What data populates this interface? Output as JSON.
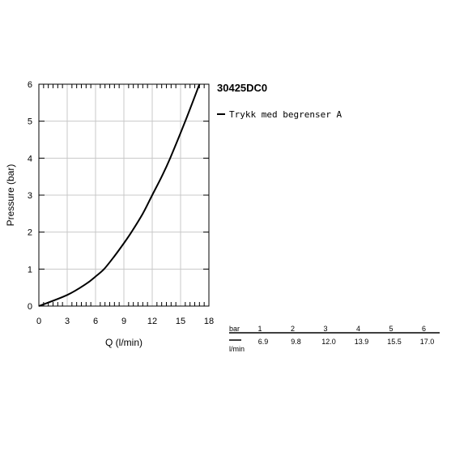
{
  "chart_data": {
    "type": "line",
    "title": "30425DC0",
    "xlabel": "Q (l/min)",
    "ylabel": "Pressure (bar)",
    "xlim": [
      0,
      18
    ],
    "ylim": [
      0,
      6
    ],
    "x_ticks": [
      0,
      3,
      6,
      9,
      12,
      15,
      18
    ],
    "y_ticks": [
      0,
      1,
      2,
      3,
      4,
      5,
      6
    ],
    "grid": true,
    "legend_position": "right",
    "series": [
      {
        "name": "Trykk med begrenser A",
        "color": "#000000",
        "x": [
          0,
          3,
          5,
          6,
          6.9,
          8,
          9,
          9.8,
          11,
          12.0,
          13.0,
          13.9,
          15.5,
          17.0
        ],
        "y": [
          0,
          0.3,
          0.6,
          0.8,
          1.0,
          1.35,
          1.7,
          2.0,
          2.5,
          3.0,
          3.5,
          4.0,
          5.0,
          6.0
        ]
      }
    ]
  },
  "table": {
    "row1_label": "bar",
    "row2_label": "l/min",
    "columns": [
      {
        "bar": "1",
        "flow": "6.9"
      },
      {
        "bar": "2",
        "flow": "9.8"
      },
      {
        "bar": "3",
        "flow": "12.0"
      },
      {
        "bar": "4",
        "flow": "13.9"
      },
      {
        "bar": "5",
        "flow": "15.5"
      },
      {
        "bar": "6",
        "flow": "17.0"
      }
    ]
  }
}
